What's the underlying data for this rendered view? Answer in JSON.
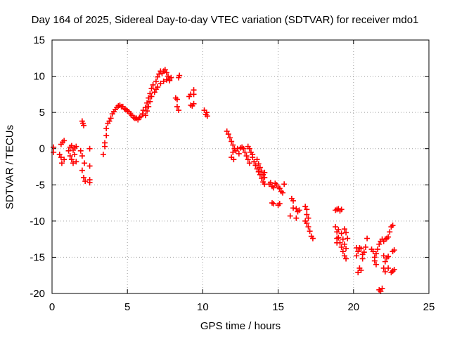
{
  "chart_data": {
    "type": "scatter",
    "title": "Day 164 of 2025, Sidereal Day-to-day VTEC variation (SDTVAR) for receiver mdo1",
    "xlabel": "GPS time / hours",
    "ylabel": "SDTVAR / TECUs",
    "xlim": [
      0,
      25
    ],
    "ylim": [
      -20,
      15
    ],
    "xticks": [
      0,
      5,
      10,
      15,
      20,
      25
    ],
    "yticks": [
      -20,
      -15,
      -10,
      -5,
      0,
      5,
      10,
      15
    ],
    "grid": true,
    "marker": "+",
    "series": [
      {
        "name": "SDTVAR",
        "color": "#ff0000",
        "points": [
          [
            0.1,
            -0.5
          ],
          [
            0.1,
            0.2
          ],
          [
            0.5,
            -0.8
          ],
          [
            0.6,
            -1.2
          ],
          [
            0.6,
            0.6
          ],
          [
            0.65,
            -2.0
          ],
          [
            0.7,
            0.9
          ],
          [
            0.8,
            1.1
          ],
          [
            0.8,
            -1.5
          ],
          [
            1.1,
            -0.3
          ],
          [
            1.2,
            -1.0
          ],
          [
            1.2,
            0.2
          ],
          [
            1.3,
            -1.5
          ],
          [
            1.3,
            0.4
          ],
          [
            1.4,
            -0.2
          ],
          [
            1.4,
            -2.0
          ],
          [
            1.5,
            -0.8
          ],
          [
            1.5,
            0.1
          ],
          [
            1.6,
            -1.8
          ],
          [
            1.6,
            0.3
          ],
          [
            2.0,
            3.8
          ],
          [
            2.05,
            3.5
          ],
          [
            2.1,
            3.2
          ],
          [
            2.0,
            -1.0
          ],
          [
            2.0,
            -3.0
          ],
          [
            2.1,
            -4.0
          ],
          [
            2.15,
            -2.0
          ],
          [
            2.2,
            -4.5
          ],
          [
            1.9,
            -0.3
          ],
          [
            2.5,
            0.0
          ],
          [
            2.5,
            -2.4
          ],
          [
            2.5,
            -4.3
          ],
          [
            2.5,
            -4.7
          ],
          [
            3.4,
            -0.8
          ],
          [
            3.5,
            0.3
          ],
          [
            3.5,
            0.8
          ],
          [
            3.6,
            1.8
          ],
          [
            3.6,
            2.8
          ],
          [
            3.7,
            3.5
          ],
          [
            3.8,
            3.8
          ],
          [
            3.9,
            4.2
          ],
          [
            4.0,
            4.8
          ],
          [
            4.1,
            5.1
          ],
          [
            4.2,
            5.4
          ],
          [
            4.3,
            5.7
          ],
          [
            4.4,
            5.9
          ],
          [
            4.5,
            6.0
          ],
          [
            4.6,
            5.8
          ],
          [
            4.7,
            5.8
          ],
          [
            4.8,
            5.5
          ],
          [
            4.9,
            5.4
          ],
          [
            5.0,
            5.2
          ],
          [
            5.1,
            5.1
          ],
          [
            5.2,
            4.8
          ],
          [
            5.3,
            4.6
          ],
          [
            5.4,
            4.3
          ],
          [
            5.5,
            4.2
          ],
          [
            5.6,
            4.2
          ],
          [
            5.7,
            4.0
          ],
          [
            5.8,
            4.3
          ],
          [
            5.9,
            4.4
          ],
          [
            6.0,
            4.8
          ],
          [
            6.05,
            5.3
          ],
          [
            6.2,
            5.7
          ],
          [
            6.3,
            6.3
          ],
          [
            6.4,
            7.0
          ],
          [
            6.5,
            7.6
          ],
          [
            6.6,
            8.3
          ],
          [
            6.7,
            8.8
          ],
          [
            6.9,
            9.3
          ],
          [
            7.0,
            9.9
          ],
          [
            7.1,
            10.3
          ],
          [
            7.2,
            10.7
          ],
          [
            7.3,
            10.4
          ],
          [
            7.4,
            10.7
          ],
          [
            7.5,
            10.9
          ],
          [
            7.6,
            10.5
          ],
          [
            7.7,
            10.0
          ],
          [
            7.8,
            9.4
          ],
          [
            6.2,
            4.6
          ],
          [
            6.3,
            5.2
          ],
          [
            6.4,
            5.8
          ],
          [
            6.5,
            6.5
          ],
          [
            6.6,
            7.2
          ],
          [
            6.8,
            7.8
          ],
          [
            6.9,
            8.2
          ],
          [
            7.0,
            8.5
          ],
          [
            7.2,
            9.0
          ],
          [
            7.4,
            9.3
          ],
          [
            7.6,
            9.5
          ],
          [
            7.8,
            9.6
          ],
          [
            7.9,
            9.8
          ],
          [
            8.2,
            7.0
          ],
          [
            8.3,
            6.8
          ],
          [
            8.4,
            5.3
          ],
          [
            8.4,
            9.8
          ],
          [
            8.45,
            10.1
          ],
          [
            8.3,
            5.8
          ],
          [
            9.1,
            7.2
          ],
          [
            9.2,
            7.5
          ],
          [
            9.2,
            6.0
          ],
          [
            9.3,
            5.9
          ],
          [
            9.4,
            7.5
          ],
          [
            9.4,
            8.1
          ],
          [
            9.4,
            6.2
          ],
          [
            10.1,
            5.3
          ],
          [
            10.2,
            4.7
          ],
          [
            10.25,
            5.0
          ],
          [
            10.3,
            4.5
          ],
          [
            11.6,
            2.4
          ],
          [
            11.7,
            2.0
          ],
          [
            11.8,
            1.5
          ],
          [
            11.9,
            1.0
          ],
          [
            12.0,
            0.5
          ],
          [
            11.9,
            -1.2
          ],
          [
            12.0,
            -0.5
          ],
          [
            12.05,
            -1.5
          ],
          [
            12.1,
            0.0
          ],
          [
            12.2,
            -0.3
          ],
          [
            12.3,
            0.0
          ],
          [
            12.4,
            -0.7
          ],
          [
            12.5,
            0.1
          ],
          [
            12.6,
            0.2
          ],
          [
            12.7,
            0.0
          ],
          [
            12.8,
            -0.5
          ],
          [
            12.9,
            -1.0
          ],
          [
            13.0,
            -1.5
          ],
          [
            13.1,
            -2.0
          ],
          [
            13.0,
            0.3
          ],
          [
            13.1,
            0.0
          ],
          [
            13.2,
            -0.5
          ],
          [
            13.3,
            -0.8
          ],
          [
            13.3,
            -1.2
          ],
          [
            13.4,
            -1.8
          ],
          [
            13.5,
            -2.3
          ],
          [
            13.6,
            -2.8
          ],
          [
            13.6,
            -1.5
          ],
          [
            13.7,
            -3.2
          ],
          [
            13.8,
            -3.6
          ],
          [
            13.9,
            -4.1
          ],
          [
            14.0,
            -4.6
          ],
          [
            14.1,
            -4.9
          ],
          [
            13.7,
            -2.1
          ],
          [
            13.8,
            -2.6
          ],
          [
            13.9,
            -3.1
          ],
          [
            14.0,
            -3.6
          ],
          [
            14.1,
            -4.0
          ],
          [
            14.1,
            -3.3
          ],
          [
            14.4,
            -4.9
          ],
          [
            14.5,
            -4.7
          ],
          [
            14.6,
            -5.2
          ],
          [
            14.7,
            -5.4
          ],
          [
            14.8,
            -4.8
          ],
          [
            14.9,
            -5.0
          ],
          [
            15.0,
            -5.3
          ],
          [
            15.1,
            -5.5
          ],
          [
            15.2,
            -5.9
          ],
          [
            15.3,
            -6.1
          ],
          [
            15.4,
            -4.9
          ],
          [
            14.6,
            -7.5
          ],
          [
            14.7,
            -7.6
          ],
          [
            15.0,
            -7.8
          ],
          [
            15.1,
            -7.6
          ],
          [
            15.9,
            -6.9
          ],
          [
            16.0,
            -7.2
          ],
          [
            16.2,
            -8.3
          ],
          [
            16.3,
            -8.7
          ],
          [
            16.4,
            -8.5
          ],
          [
            16.0,
            -8.2
          ],
          [
            15.8,
            -9.3
          ],
          [
            16.2,
            -9.6
          ],
          [
            16.8,
            -8.0
          ],
          [
            16.9,
            -8.4
          ],
          [
            16.9,
            -9.1
          ],
          [
            17.0,
            -9.6
          ],
          [
            16.9,
            -10.3
          ],
          [
            17.0,
            -10.8
          ],
          [
            17.1,
            -11.4
          ],
          [
            17.2,
            -12.1
          ],
          [
            17.3,
            -12.4
          ],
          [
            16.8,
            -10.0
          ],
          [
            18.8,
            -8.5
          ],
          [
            18.9,
            -8.4
          ],
          [
            19.0,
            -8.3
          ],
          [
            19.1,
            -8.6
          ],
          [
            19.2,
            -8.4
          ],
          [
            18.8,
            -10.8
          ],
          [
            18.9,
            -11.5
          ],
          [
            19.0,
            -12.3
          ],
          [
            19.1,
            -13.0
          ],
          [
            19.2,
            -13.6
          ],
          [
            19.3,
            -14.2
          ],
          [
            19.4,
            -14.8
          ],
          [
            19.5,
            -15.2
          ],
          [
            19.0,
            -11.2
          ],
          [
            19.2,
            -11.7
          ],
          [
            19.3,
            -12.5
          ],
          [
            19.4,
            -13.2
          ],
          [
            19.5,
            -13.8
          ],
          [
            19.5,
            -11.6
          ],
          [
            19.6,
            -12.4
          ],
          [
            19.4,
            -11.1
          ],
          [
            18.9,
            -12.4
          ],
          [
            18.9,
            -13.0
          ],
          [
            20.2,
            -13.7
          ],
          [
            20.3,
            -14.2
          ],
          [
            20.2,
            -14.8
          ],
          [
            20.4,
            -13.7
          ],
          [
            20.5,
            -13.8
          ],
          [
            20.6,
            -14.6
          ],
          [
            20.7,
            -14.3
          ],
          [
            20.8,
            -13.6
          ],
          [
            20.4,
            -16.5
          ],
          [
            20.5,
            -16.8
          ],
          [
            20.3,
            -17.1
          ],
          [
            20.6,
            -15.2
          ],
          [
            20.9,
            -12.4
          ],
          [
            21.2,
            -13.9
          ],
          [
            21.3,
            -14.2
          ],
          [
            21.4,
            -15.5
          ],
          [
            21.5,
            -16.0
          ],
          [
            21.4,
            -15.0
          ],
          [
            21.5,
            -14.5
          ],
          [
            21.6,
            -13.9
          ],
          [
            21.7,
            -13.2
          ],
          [
            21.8,
            -12.8
          ],
          [
            21.9,
            -12.5
          ],
          [
            22.0,
            -14.8
          ],
          [
            22.1,
            -15.6
          ],
          [
            22.2,
            -15.1
          ],
          [
            22.3,
            -14.9
          ],
          [
            22.0,
            -16.5
          ],
          [
            22.1,
            -17.0
          ],
          [
            22.3,
            -16.5
          ],
          [
            22.0,
            -12.8
          ],
          [
            22.1,
            -12.5
          ],
          [
            22.2,
            -12.4
          ],
          [
            22.3,
            -12.2
          ],
          [
            22.4,
            -11.5
          ],
          [
            21.7,
            -19.5
          ],
          [
            21.8,
            -19.7
          ],
          [
            21.9,
            -19.3
          ],
          [
            22.5,
            -10.8
          ],
          [
            22.6,
            -10.6
          ],
          [
            22.7,
            -14.0
          ],
          [
            22.6,
            -14.2
          ],
          [
            22.7,
            -16.7
          ],
          [
            22.6,
            -16.9
          ],
          [
            22.5,
            -17.1
          ]
        ]
      }
    ]
  }
}
